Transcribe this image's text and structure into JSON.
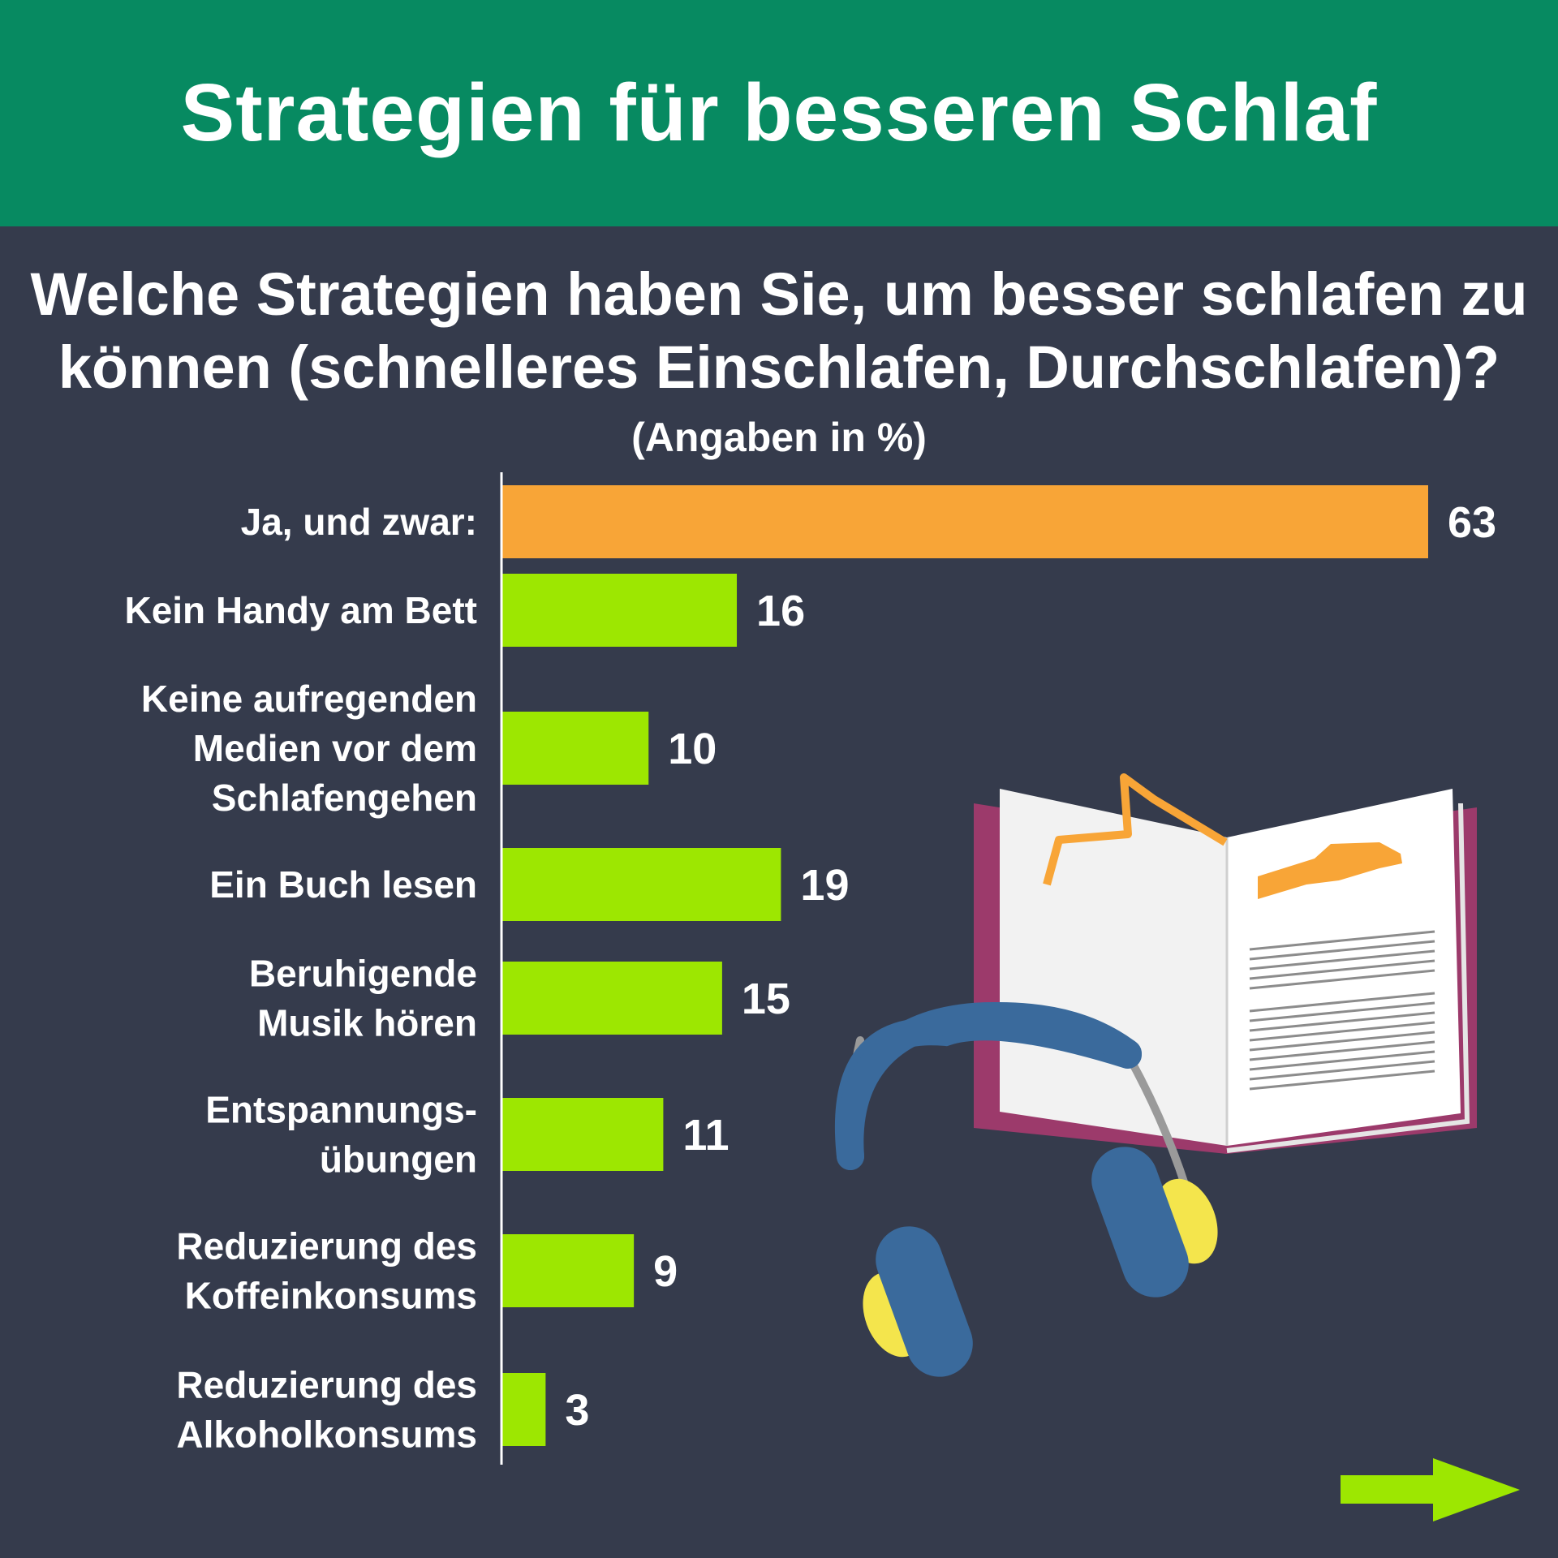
{
  "header": {
    "title": "Strategien für besseren Schlaf"
  },
  "chart_data": {
    "type": "bar",
    "orientation": "horizontal",
    "title": "Welche Strategien haben Sie, um besser schlafen zu können (schnelleres Einschlafen, Durchschlafen)?",
    "subtitle": "(Angaben in %)",
    "xlim": [
      0,
      63
    ],
    "grid": false,
    "categories": [
      "Ja, und zwar:",
      "Kein Handy am Bett",
      "Keine aufregenden Medien vor dem Schlafengehen",
      "Ein Buch lesen",
      "Beruhigende Musik hören",
      "Entspannungs-übungen",
      "Reduzierung des Koffeinkonsums",
      "Reduzierung des Alkoholkonsums"
    ],
    "category_lines": [
      [
        "Ja, und zwar:"
      ],
      [
        "Kein Handy am Bett"
      ],
      [
        "Keine aufregenden",
        "Medien vor dem",
        "Schlafengehen"
      ],
      [
        "Ein Buch lesen"
      ],
      [
        "Beruhigende",
        "Musik hören"
      ],
      [
        "Entspannungs-",
        "übungen"
      ],
      [
        "Reduzierung des",
        "Koffeinkonsums"
      ],
      [
        "Reduzierung des",
        "Alkoholkonsums"
      ]
    ],
    "values": [
      63,
      16,
      10,
      19,
      15,
      11,
      9,
      3
    ],
    "value_labels": [
      "63",
      "16",
      "10",
      "19",
      "15",
      "11",
      "9",
      "3"
    ],
    "colors": {
      "highlight": "#f8a537",
      "bars": "#9de701",
      "axis": "#ffffff",
      "text": "#ffffff"
    }
  },
  "decorations": {
    "icons": [
      "book-icon",
      "headphones-icon",
      "next-arrow-icon"
    ],
    "colors": {
      "book_cover": "#9c3a6b",
      "accent": "#f8a537",
      "headphones": "#3a6a9c",
      "ear_pad": "#f4e54c",
      "arrow": "#9de701"
    }
  }
}
